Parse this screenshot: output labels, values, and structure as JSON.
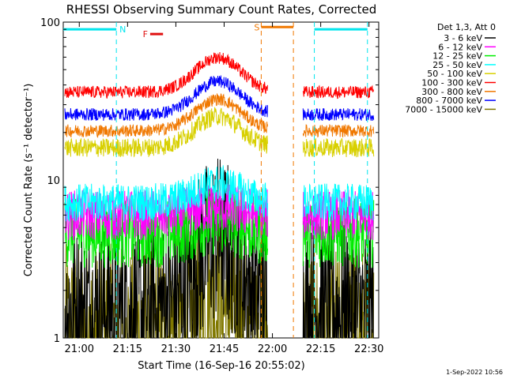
{
  "chart_data": {
    "type": "line",
    "title": "RHESSI Observing Summary Count Rates, Corrected",
    "xlabel": "Start Time (16-Sep-16 20:55:02)",
    "ylabel": "Corrected Count Rate (s⁻¹ detector⁻¹)",
    "footer": "1-Sep-2022 10:56",
    "legend_header": "Det 1,3, Att 0",
    "y_scale": "log",
    "ylim": [
      1,
      100
    ],
    "xlim_min": [
      0,
      98
    ],
    "x_ticks": [
      {
        "label": "21:00",
        "min": 4.98
      },
      {
        "label": "21:15",
        "min": 19.98
      },
      {
        "label": "21:30",
        "min": 34.98
      },
      {
        "label": "21:45",
        "min": 49.98
      },
      {
        "label": "22:00",
        "min": 64.98
      },
      {
        "label": "22:15",
        "min": 79.98
      },
      {
        "label": "22:30",
        "min": 94.98
      }
    ],
    "y_ticks": [
      {
        "label": "1",
        "value": 1
      },
      {
        "label": "10",
        "value": 10
      },
      {
        "label": "100",
        "value": 100
      }
    ],
    "annotations": [
      {
        "label": "N",
        "color": "#00e5ee",
        "bars": [
          [
            0,
            16.5
          ],
          [
            78,
            94.5
          ]
        ],
        "y": 90,
        "dashes": [
          16.5,
          78,
          94.5
        ]
      },
      {
        "label": "F",
        "color": "#e01010",
        "bars": [
          [
            27,
            31
          ]
        ],
        "y": 84
      },
      {
        "label": "S",
        "color": "#f07800",
        "bars": [
          [
            61.5,
            71.5
          ]
        ],
        "y": 93,
        "dashes": [
          61.5,
          71.5
        ]
      }
    ],
    "data_gap_min": [
      63.5,
      74.5
    ],
    "series": [
      {
        "name": "3 - 6 keV",
        "color": "#000000",
        "base": 1.5,
        "jitter": 0.55,
        "bump": 0.45
      },
      {
        "name": "6 - 12 keV",
        "color": "#ff00ff",
        "base": 6.0,
        "jitter": 0.16,
        "bump": 0.05
      },
      {
        "name": "12 - 25 keV",
        "color": "#00ee00",
        "base": 4.6,
        "jitter": 0.22,
        "bump": 0.08
      },
      {
        "name": "25 - 50 keV",
        "color": "#00ffff",
        "base": 7.2,
        "jitter": 0.12,
        "bump": 0.12
      },
      {
        "name": "50 - 100 keV",
        "color": "#d8d000",
        "base": 16.0,
        "jitter": 0.06,
        "bump": 0.2
      },
      {
        "name": "100 - 300 keV",
        "color": "#ff0000",
        "base": 36.0,
        "jitter": 0.04,
        "bump": 0.22
      },
      {
        "name": "300 - 800 keV",
        "color": "#f07800",
        "base": 20.5,
        "jitter": 0.04,
        "bump": 0.2
      },
      {
        "name": "800 - 7000 keV",
        "color": "#0000ff",
        "base": 26.0,
        "jitter": 0.04,
        "bump": 0.21
      },
      {
        "name": "7000 - 15000 keV",
        "color": "#807800",
        "base": 1.0,
        "jitter": 0.6,
        "bump": 0.2
      }
    ]
  }
}
